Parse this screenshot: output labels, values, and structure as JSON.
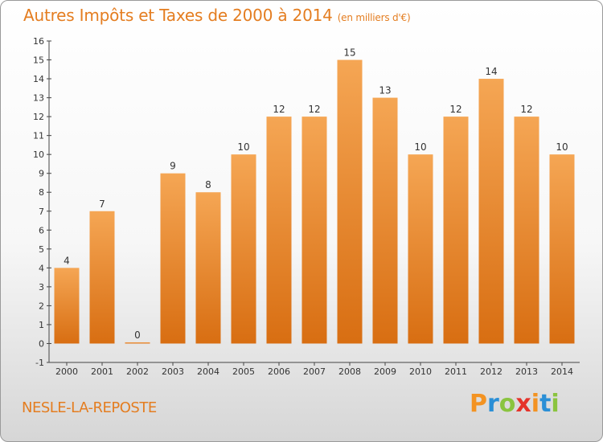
{
  "title": "Autres Impôts et Taxes de 2000 à 2014",
  "unit_note": "(en milliers d'€)",
  "commune": "NESLE-LA-REPOSTE",
  "logo": {
    "text": "Proxiti",
    "letters": [
      "P",
      "r",
      "o",
      "x",
      "i",
      "t",
      "i"
    ],
    "colors": [
      "#f39322",
      "#2a8fd6",
      "#8ac43f",
      "#e5332a",
      "#f39322",
      "#2a8fd6",
      "#8ac43f"
    ]
  },
  "colors": {
    "accent": "#e47d20",
    "bar_light": "#f5a654",
    "bar_dark": "#d86e12"
  },
  "chart_data": {
    "type": "bar",
    "categories": [
      "2000",
      "2001",
      "2002",
      "2003",
      "2004",
      "2005",
      "2006",
      "2007",
      "2008",
      "2009",
      "2010",
      "2011",
      "2012",
      "2013",
      "2014"
    ],
    "values": [
      4,
      7,
      0,
      9,
      8,
      10,
      12,
      12,
      15,
      13,
      10,
      12,
      14,
      12,
      10
    ],
    "data_labels": [
      "4",
      "7",
      "0",
      "9",
      "8",
      "10",
      "12",
      "12",
      "15",
      "13",
      "10",
      "12",
      "14",
      "12",
      "10"
    ],
    "yticks": [
      -1,
      0,
      1,
      2,
      3,
      4,
      5,
      6,
      7,
      8,
      9,
      10,
      11,
      12,
      13,
      14,
      15,
      16
    ],
    "ylim": [
      -1,
      16
    ],
    "grid": false,
    "title": "Autres Impôts et Taxes de 2000 à 2014"
  }
}
